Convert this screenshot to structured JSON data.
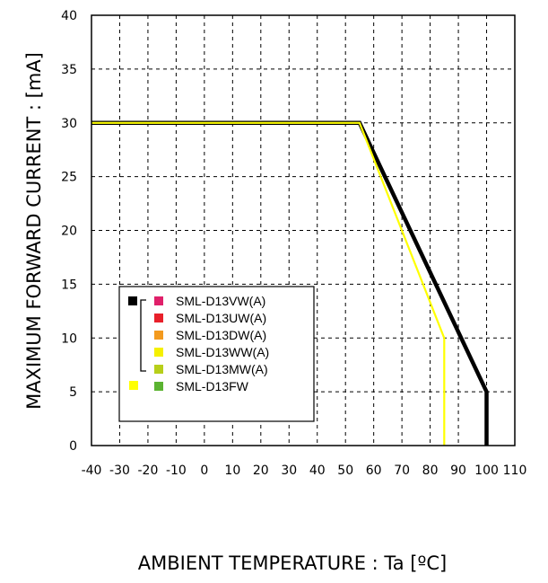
{
  "chart_data": {
    "type": "line",
    "xlabel": "AMBIENT TEMPERATURE : Ta [ºC]",
    "ylabel": "MAXIMUM FORWARD CURRENT :  [mA]",
    "xlim": [
      -40,
      110
    ],
    "ylim": [
      0,
      40
    ],
    "x_ticks": [
      "-40",
      "-30",
      "-20",
      "-10",
      "0",
      "10",
      "20",
      "30",
      "40",
      "50",
      "60",
      "70",
      "80",
      "90",
      "100",
      "110"
    ],
    "y_ticks": [
      "0",
      "5",
      "10",
      "15",
      "20",
      "25",
      "30",
      "35",
      "40"
    ],
    "grid": true,
    "grid_style": "dashed",
    "legend_position": "lower-left",
    "series": [
      {
        "color": "#000000",
        "points": [
          [
            -40,
            30
          ],
          [
            55,
            30
          ],
          [
            100,
            5
          ],
          [
            100,
            0
          ]
        ]
      },
      {
        "color": "#ffff00",
        "points": [
          [
            -40,
            30
          ],
          [
            55,
            30
          ],
          [
            85,
            10
          ],
          [
            85,
            0
          ]
        ]
      }
    ],
    "legend": {
      "entries": [
        {
          "label": "SML-D13VW(A)",
          "color": "#e0206a"
        },
        {
          "label": "SML-D13UW(A)",
          "color": "#e8202a"
        },
        {
          "label": "SML-D13DW(A)",
          "color": "#f39a1e"
        },
        {
          "label": "SML-D13WW(A)",
          "color": "#f5f000"
        },
        {
          "label": "SML-D13MW(A)",
          "color": "#b7cf1a"
        },
        {
          "label": "SML-D13FW",
          "color": "#5bb331"
        }
      ],
      "group_markers": [
        {
          "color": "#000000",
          "entries": [
            0,
            1,
            2,
            3,
            4
          ]
        },
        {
          "color": "#ffff00",
          "entries": [
            5
          ]
        }
      ]
    }
  }
}
